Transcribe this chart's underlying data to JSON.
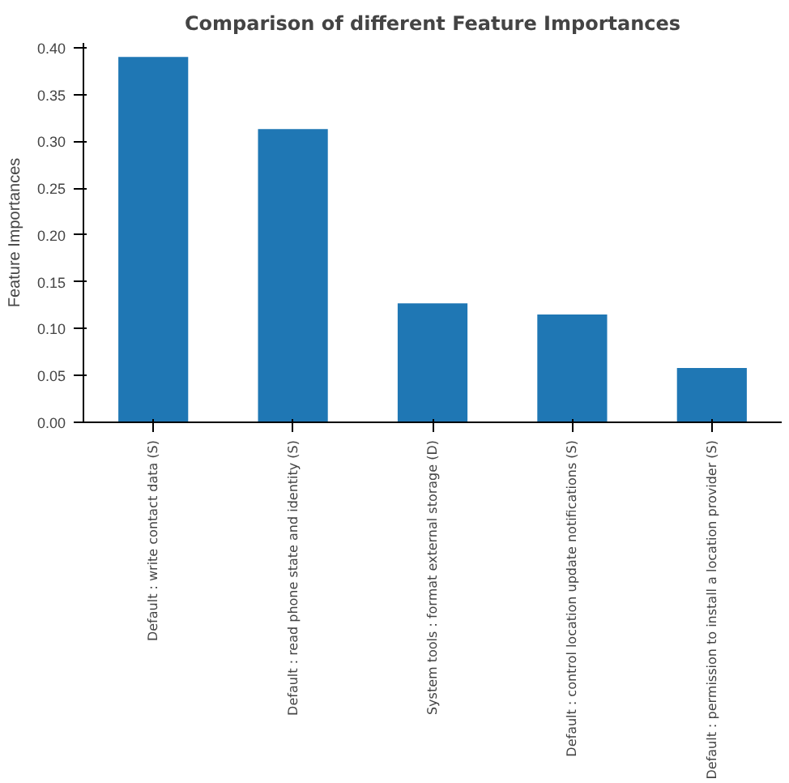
{
  "chart_data": {
    "type": "bar",
    "title": "Comparison of different Feature Importances",
    "ylabel": "Feature Importances",
    "categories": [
      "Default : write contact data (S)",
      "Default : read phone state and identity (S)",
      "System tools : format external storage (D)",
      "Default : control location update notifications (S)",
      "Default : permission to install a location provider (S)"
    ],
    "values": [
      0.39,
      0.313,
      0.127,
      0.115,
      0.058
    ],
    "color": "#1f77b4",
    "ylim": [
      0,
      0.405
    ],
    "yticks": [
      {
        "value": 0,
        "label": "0.00"
      },
      {
        "value": 0.05,
        "label": "0.05"
      },
      {
        "value": 0.1,
        "label": "0.10"
      },
      {
        "value": 0.15,
        "label": "0.15"
      },
      {
        "value": 0.2,
        "label": "0.20"
      },
      {
        "value": 0.25,
        "label": "0.25"
      },
      {
        "value": 0.3,
        "label": "0.30"
      },
      {
        "value": 0.35,
        "label": "0.35"
      },
      {
        "value": 0.4,
        "label": "0.40"
      }
    ],
    "grid": false
  }
}
